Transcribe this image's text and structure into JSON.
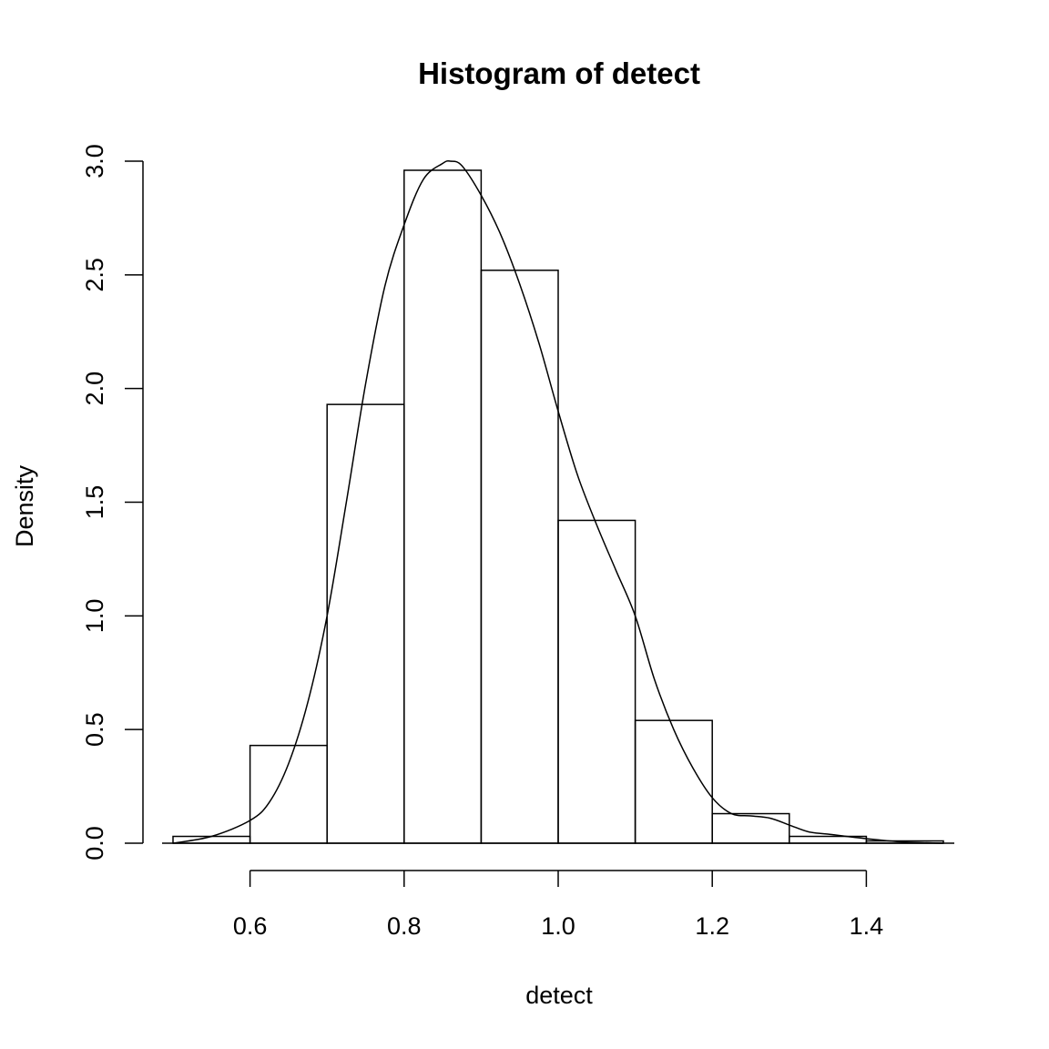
{
  "chart_data": {
    "type": "bar",
    "subtype": "histogram",
    "title": "Histogram of detect",
    "xlabel": "detect",
    "ylabel": "Density",
    "xlim": [
      0.5,
      1.5
    ],
    "ylim": [
      0,
      3.0
    ],
    "x_ticks": [
      0.6,
      0.8,
      1.0,
      1.2,
      1.4
    ],
    "x_tick_labels": [
      "0.6",
      "0.8",
      "1.0",
      "1.2",
      "1.4"
    ],
    "y_ticks": [
      0,
      0.5,
      1.0,
      1.5,
      2.0,
      2.5,
      3.0
    ],
    "y_tick_labels": [
      "0.0",
      "0.5",
      "1.0",
      "1.5",
      "2.0",
      "2.5",
      "3.0"
    ],
    "grid": false,
    "bins": [
      {
        "x0": 0.5,
        "x1": 0.6,
        "density": 0.03
      },
      {
        "x0": 0.6,
        "x1": 0.7,
        "density": 0.43
      },
      {
        "x0": 0.7,
        "x1": 0.8,
        "density": 1.93
      },
      {
        "x0": 0.8,
        "x1": 0.9,
        "density": 2.96
      },
      {
        "x0": 0.9,
        "x1": 1.0,
        "density": 2.52
      },
      {
        "x0": 1.0,
        "x1": 1.1,
        "density": 1.42
      },
      {
        "x0": 1.1,
        "x1": 1.2,
        "density": 0.54
      },
      {
        "x0": 1.2,
        "x1": 1.3,
        "density": 0.13
      },
      {
        "x0": 1.3,
        "x1": 1.4,
        "density": 0.03
      },
      {
        "x0": 1.4,
        "x1": 1.5,
        "density": 0.01
      }
    ],
    "density_curve": {
      "x": [
        0.5,
        0.55,
        0.6,
        0.625,
        0.65,
        0.675,
        0.7,
        0.725,
        0.75,
        0.775,
        0.8,
        0.825,
        0.85,
        0.86,
        0.875,
        0.9,
        0.925,
        0.95,
        0.975,
        1.0,
        1.025,
        1.05,
        1.075,
        1.1,
        1.125,
        1.15,
        1.175,
        1.2,
        1.225,
        1.25,
        1.275,
        1.3,
        1.325,
        1.35,
        1.4,
        1.45,
        1.5
      ],
      "y": [
        0.0,
        0.03,
        0.1,
        0.18,
        0.35,
        0.62,
        1.0,
        1.5,
        2.02,
        2.45,
        2.72,
        2.92,
        2.99,
        3.0,
        2.98,
        2.85,
        2.68,
        2.46,
        2.2,
        1.9,
        1.62,
        1.4,
        1.2,
        1.0,
        0.72,
        0.5,
        0.33,
        0.2,
        0.13,
        0.12,
        0.11,
        0.08,
        0.05,
        0.04,
        0.02,
        0.005,
        0.0
      ]
    }
  }
}
